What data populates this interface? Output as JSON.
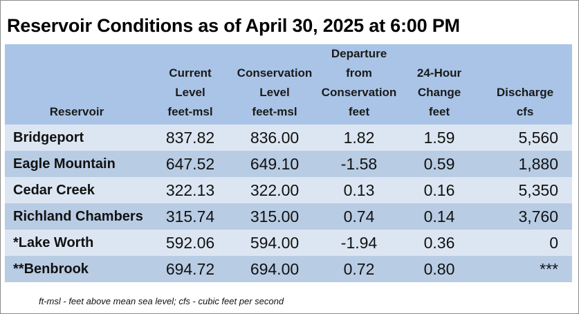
{
  "title": "Reservoir Conditions as of April 30, 2025 at 6:00 PM",
  "table": {
    "headers": {
      "reservoir": [
        "Reservoir"
      ],
      "current": [
        "Current",
        "Level",
        "feet-msl"
      ],
      "conservation": [
        "Conservation",
        "Level",
        "feet-msl"
      ],
      "departure": [
        "Departure",
        "from",
        "Conservation",
        "feet"
      ],
      "change": [
        "24-Hour",
        "Change",
        "feet"
      ],
      "discharge": [
        "Discharge",
        "cfs"
      ]
    },
    "rows": [
      {
        "name": "Bridgeport",
        "current": "837.82",
        "conservation": "836.00",
        "departure": "1.82",
        "change": "1.59",
        "discharge": "5,560"
      },
      {
        "name": "Eagle Mountain",
        "current": "647.52",
        "conservation": "649.10",
        "departure": "-1.58",
        "change": "0.59",
        "discharge": "1,880"
      },
      {
        "name": "Cedar Creek",
        "current": "322.13",
        "conservation": "322.00",
        "departure": "0.13",
        "change": "0.16",
        "discharge": "5,350"
      },
      {
        "name": "Richland Chambers",
        "current": "315.74",
        "conservation": "315.00",
        "departure": "0.74",
        "change": "0.14",
        "discharge": "3,760"
      },
      {
        "name": "*Lake Worth",
        "current": "592.06",
        "conservation": "594.00",
        "departure": "-1.94",
        "change": "0.36",
        "discharge": "0"
      },
      {
        "name": "**Benbrook",
        "current": "694.72",
        "conservation": "694.00",
        "departure": "0.72",
        "change": "0.80",
        "discharge": "***"
      }
    ]
  },
  "footnote": "ft-msl - feet above mean sea level; cfs - cubic feet per second",
  "colors": {
    "header_bg": "#a9c4e6",
    "row_light": "#dce6f2",
    "row_dark": "#b8cce4"
  }
}
